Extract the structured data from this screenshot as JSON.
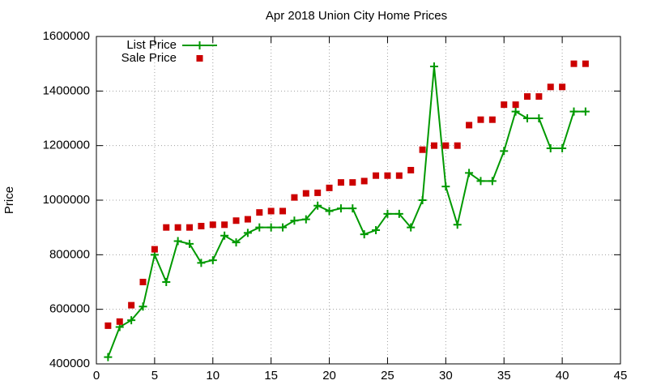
{
  "chart_data": {
    "type": "line",
    "title": "Apr 2018 Union City Home Prices",
    "y_label": "Price",
    "x": [
      1,
      2,
      3,
      4,
      5,
      6,
      7,
      8,
      9,
      10,
      11,
      12,
      13,
      14,
      15,
      16,
      17,
      18,
      19,
      20,
      21,
      22,
      23,
      24,
      25,
      26,
      27,
      28,
      29,
      30,
      31,
      32,
      33,
      34,
      35,
      36,
      37,
      38,
      39,
      40,
      41,
      42
    ],
    "series": [
      {
        "name": "List Price",
        "color": "#009900",
        "style": "linespoints",
        "values": [
          425000,
          535000,
          560000,
          610000,
          800000,
          700000,
          850000,
          840000,
          770000,
          780000,
          870000,
          845000,
          880000,
          900000,
          900000,
          900000,
          925000,
          930000,
          980000,
          960000,
          970000,
          970000,
          875000,
          890000,
          950000,
          950000,
          900000,
          1000000,
          1490000,
          1050000,
          910000,
          1100000,
          1070000,
          1070000,
          1180000,
          1325000,
          1300000,
          1300000,
          1190000,
          1190000,
          1325000,
          1325000
        ]
      },
      {
        "name": "Sale Price",
        "color": "#cc0000",
        "style": "points",
        "values": [
          540000,
          555000,
          615000,
          700000,
          820000,
          900000,
          900000,
          900000,
          905000,
          910000,
          910000,
          925000,
          930000,
          955000,
          960000,
          960000,
          1010000,
          1025000,
          1027000,
          1045000,
          1065000,
          1065000,
          1070000,
          1090000,
          1090000,
          1090000,
          1110000,
          1185000,
          1200000,
          1200000,
          1200000,
          1275000,
          1295000,
          1295000,
          1350000,
          1350000,
          1380000,
          1380000,
          1415000,
          1415000,
          1500000,
          1500000
        ]
      }
    ],
    "xlim": [
      0,
      45
    ],
    "xticks": [
      0,
      5,
      10,
      15,
      20,
      25,
      30,
      35,
      40,
      45
    ],
    "ylim": [
      400000,
      1600000
    ],
    "yticks": [
      400000,
      600000,
      800000,
      1000000,
      1200000,
      1400000,
      1600000
    ],
    "grid": true,
    "legend": "top-left"
  }
}
